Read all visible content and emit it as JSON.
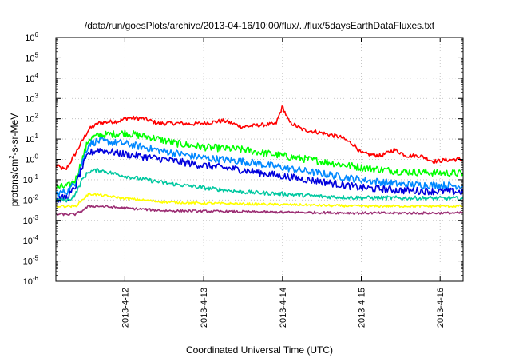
{
  "chart_data": {
    "type": "line",
    "title": "/data/run/goesPlots/archive/2013-04-16/10:00/flux/../flux/5daysEarthDataFluxes.txt",
    "xlabel": "Coordinated Universal Time (UTC)",
    "ylabel": {
      "prefix": "protons/cm",
      "sup": "2",
      "suffix": "-s-sr-MeV"
    },
    "xlim": [
      "2013-04-11T03:00",
      "2013-04-16T07:00"
    ],
    "ylim": [
      1e-06,
      1000000
    ],
    "yscale": "log",
    "grid": true,
    "x_ticks": [
      "2013-4-12",
      "2013-4-13",
      "2013-4-14",
      "2013-4-15",
      "2013-4-16"
    ],
    "y_ticks": [
      {
        "base": "10",
        "exp": "6"
      },
      {
        "base": "10",
        "exp": "5"
      },
      {
        "base": "10",
        "exp": "4"
      },
      {
        "base": "10",
        "exp": "3"
      },
      {
        "base": "10",
        "exp": "2"
      },
      {
        "base": "10",
        "exp": "1"
      },
      {
        "base": "10",
        "exp": "0"
      },
      {
        "base": "10",
        "exp": "-1"
      },
      {
        "base": "10",
        "exp": "-2"
      },
      {
        "base": "10",
        "exp": "-3"
      },
      {
        "base": "10",
        "exp": "-4"
      },
      {
        "base": "10",
        "exp": "-5"
      },
      {
        "base": "10",
        "exp": "-6"
      }
    ],
    "series": [
      {
        "color": "#ff0000",
        "points": [
          [
            "2013-04-11T03:00",
            0.5
          ],
          [
            "2013-04-11T06:00",
            0.3
          ],
          [
            "2013-04-11T09:00",
            2
          ],
          [
            "2013-04-11T11:00",
            8
          ],
          [
            "2013-04-11T13:00",
            30
          ],
          [
            "2013-04-11T16:00",
            60
          ],
          [
            "2013-04-11T19:00",
            70
          ],
          [
            "2013-04-11T22:00",
            75
          ],
          [
            "2013-04-12T01:00",
            110
          ],
          [
            "2013-04-12T06:00",
            100
          ],
          [
            "2013-04-12T10:00",
            60
          ],
          [
            "2013-04-12T16:00",
            60
          ],
          [
            "2013-04-12T20:00",
            55
          ],
          [
            "2013-04-13T00:00",
            60
          ],
          [
            "2013-04-13T06:00",
            80
          ],
          [
            "2013-04-13T12:00",
            40
          ],
          [
            "2013-04-13T18:00",
            50
          ],
          [
            "2013-04-13T22:00",
            55
          ],
          [
            "2013-04-14T00:00",
            400
          ],
          [
            "2013-04-14T02:00",
            70
          ],
          [
            "2013-04-14T06:00",
            30
          ],
          [
            "2013-04-14T12:00",
            20
          ],
          [
            "2013-04-14T18:00",
            12
          ],
          [
            "2013-04-14T22:00",
            5
          ],
          [
            "2013-04-15T00:00",
            2
          ],
          [
            "2013-04-15T06:00",
            1.5
          ],
          [
            "2013-04-15T10:00",
            3
          ],
          [
            "2013-04-15T14:00",
            1.5
          ],
          [
            "2013-04-15T18:00",
            1.5
          ],
          [
            "2013-04-15T22:00",
            0.8
          ],
          [
            "2013-04-16T04:00",
            1
          ],
          [
            "2013-04-16T07:00",
            1
          ]
        ]
      },
      {
        "color": "#00ff00",
        "points": [
          [
            "2013-04-11T03:00",
            0.04
          ],
          [
            "2013-04-11T07:00",
            0.05
          ],
          [
            "2013-04-11T09:00",
            0.1
          ],
          [
            "2013-04-11T11:00",
            1
          ],
          [
            "2013-04-11T13:00",
            10
          ],
          [
            "2013-04-11T16:00",
            15
          ],
          [
            "2013-04-12T00:00",
            20
          ],
          [
            "2013-04-12T08:00",
            12
          ],
          [
            "2013-04-12T16:00",
            6
          ],
          [
            "2013-04-13T00:00",
            4
          ],
          [
            "2013-04-13T12:00",
            3
          ],
          [
            "2013-04-14T00:00",
            1.5
          ],
          [
            "2013-04-14T12:00",
            0.8
          ],
          [
            "2013-04-15T00:00",
            0.4
          ],
          [
            "2013-04-15T12:00",
            0.25
          ],
          [
            "2013-04-16T07:00",
            0.2
          ]
        ]
      },
      {
        "color": "#0088ff",
        "points": [
          [
            "2013-04-11T03:00",
            0.02
          ],
          [
            "2013-04-11T07:00",
            0.03
          ],
          [
            "2013-04-11T09:00",
            0.08
          ],
          [
            "2013-04-11T11:00",
            0.7
          ],
          [
            "2013-04-11T13:00",
            6
          ],
          [
            "2013-04-11T16:00",
            8
          ],
          [
            "2013-04-12T00:00",
            6
          ],
          [
            "2013-04-12T12:00",
            2.5
          ],
          [
            "2013-04-13T00:00",
            1.2
          ],
          [
            "2013-04-13T12:00",
            0.8
          ],
          [
            "2013-04-14T00:00",
            0.4
          ],
          [
            "2013-04-14T12:00",
            0.2
          ],
          [
            "2013-04-15T00:00",
            0.1
          ],
          [
            "2013-04-15T12:00",
            0.06
          ],
          [
            "2013-04-16T07:00",
            0.05
          ]
        ]
      },
      {
        "color": "#0000dd",
        "points": [
          [
            "2013-04-11T03:00",
            0.01
          ],
          [
            "2013-04-11T07:00",
            0.015
          ],
          [
            "2013-04-11T09:00",
            0.05
          ],
          [
            "2013-04-11T11:00",
            0.4
          ],
          [
            "2013-04-11T13:00",
            2
          ],
          [
            "2013-04-11T16:00",
            3
          ],
          [
            "2013-04-12T00:00",
            1.8
          ],
          [
            "2013-04-12T12:00",
            1
          ],
          [
            "2013-04-13T00:00",
            0.5
          ],
          [
            "2013-04-13T12:00",
            0.3
          ],
          [
            "2013-04-14T00:00",
            0.15
          ],
          [
            "2013-04-14T12:00",
            0.08
          ],
          [
            "2013-04-15T00:00",
            0.04
          ],
          [
            "2013-04-15T12:00",
            0.03
          ],
          [
            "2013-04-16T07:00",
            0.025
          ]
        ]
      },
      {
        "color": "#00c8a0",
        "points": [
          [
            "2013-04-11T03:00",
            0.01
          ],
          [
            "2013-04-11T07:00",
            0.01
          ],
          [
            "2013-04-11T09:00",
            0.02
          ],
          [
            "2013-04-11T11:00",
            0.1
          ],
          [
            "2013-04-11T13:00",
            0.25
          ],
          [
            "2013-04-11T16:00",
            0.3
          ],
          [
            "2013-04-12T00:00",
            0.15
          ],
          [
            "2013-04-12T12:00",
            0.07
          ],
          [
            "2013-04-13T00:00",
            0.04
          ],
          [
            "2013-04-13T12:00",
            0.025
          ],
          [
            "2013-04-14T00:00",
            0.02
          ],
          [
            "2013-04-14T12:00",
            0.015
          ],
          [
            "2013-04-15T00:00",
            0.013
          ],
          [
            "2013-04-16T07:00",
            0.012
          ]
        ]
      },
      {
        "color": "#ffff00",
        "points": [
          [
            "2013-04-11T03:00",
            0.005
          ],
          [
            "2013-04-11T09:00",
            0.005
          ],
          [
            "2013-04-11T11:00",
            0.01
          ],
          [
            "2013-04-11T13:00",
            0.02
          ],
          [
            "2013-04-11T16:00",
            0.018
          ],
          [
            "2013-04-12T00:00",
            0.012
          ],
          [
            "2013-04-12T12:00",
            0.008
          ],
          [
            "2013-04-13T00:00",
            0.007
          ],
          [
            "2013-04-14T00:00",
            0.006
          ],
          [
            "2013-04-15T00:00",
            0.005
          ],
          [
            "2013-04-16T07:00",
            0.005
          ]
        ]
      },
      {
        "color": "#9b2d73",
        "points": [
          [
            "2013-04-11T03:00",
            0.002
          ],
          [
            "2013-04-11T09:00",
            0.002
          ],
          [
            "2013-04-11T11:00",
            0.003
          ],
          [
            "2013-04-11T13:00",
            0.005
          ],
          [
            "2013-04-11T16:00",
            0.005
          ],
          [
            "2013-04-12T00:00",
            0.004
          ],
          [
            "2013-04-12T12:00",
            0.003
          ],
          [
            "2013-04-13T00:00",
            0.0028
          ],
          [
            "2013-04-14T00:00",
            0.0025
          ],
          [
            "2013-04-15T00:00",
            0.0023
          ],
          [
            "2013-04-16T07:00",
            0.0023
          ]
        ]
      }
    ]
  }
}
